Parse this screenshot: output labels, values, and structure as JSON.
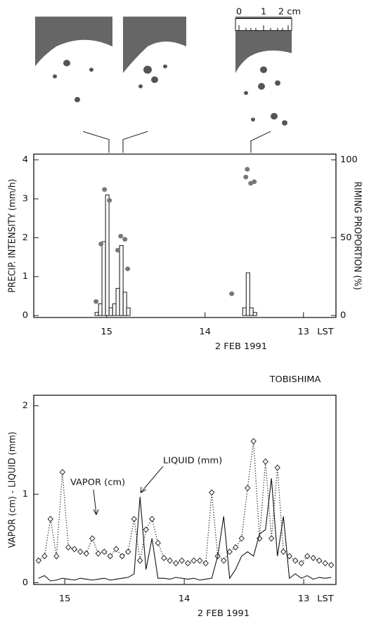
{
  "photo_scale": {
    "labels": [
      "0",
      "1",
      "2 cm"
    ]
  },
  "chart_data": [
    {
      "type": "bar",
      "y_label": "PRECIP. INTENSITY (mm/h)",
      "y2_label": "RIMING PROPORTION (%)",
      "x_unit": "LST",
      "x_label": "2 FEB 1991",
      "xlim": [
        15.74,
        12.67
      ],
      "xticks": [
        15,
        14,
        13
      ],
      "ylim": [
        -0.05,
        4.15
      ],
      "yticks": [
        0,
        1,
        2,
        3,
        4
      ],
      "y2lim": [
        -1.25,
        103.75
      ],
      "y2ticks": [
        0,
        50,
        100
      ],
      "color": "#ffffff",
      "x": [
        15.1,
        15.064,
        15.029,
        14.993,
        14.957,
        14.921,
        14.886,
        14.85,
        14.814,
        14.779,
        13.6,
        13.564,
        13.529,
        13.493
      ],
      "values": [
        0.08,
        0.3,
        1.9,
        3.1,
        0.2,
        0.3,
        0.7,
        1.8,
        0.6,
        0.2,
        0.2,
        1.1,
        0.2,
        0.08
      ],
      "overlay": {
        "type": "scatter",
        "axis": "y2",
        "color": "#777777",
        "x": [
          15.107,
          15.057,
          15.021,
          14.971,
          14.886,
          14.857,
          14.814,
          14.786,
          13.729,
          13.586,
          13.571,
          13.536,
          13.5
        ],
        "values": [
          9,
          46,
          81,
          74,
          42,
          51,
          49,
          30,
          14,
          89,
          94,
          85,
          86
        ]
      }
    },
    {
      "type": "line",
      "y_label": "VAPOR (cm) - LIQUID (mm)",
      "x_unit": "LST",
      "x_label": "2 FEB 1991",
      "annotations": [
        "TOBISHIMA",
        "LIQUID (mm)",
        "VAPOR (cm)"
      ],
      "xlim": [
        15.26,
        12.73
      ],
      "xticks": [
        15,
        14,
        13
      ],
      "ylim": [
        -0.02,
        2.12
      ],
      "yticks": [
        0,
        1,
        2
      ],
      "x": [
        15.22,
        15.17,
        15.12,
        15.07,
        15.02,
        14.97,
        14.92,
        14.87,
        14.82,
        14.77,
        14.72,
        14.67,
        14.62,
        14.57,
        14.52,
        14.47,
        14.42,
        14.37,
        14.32,
        14.27,
        14.22,
        14.17,
        14.12,
        14.07,
        14.02,
        13.97,
        13.92,
        13.87,
        13.82,
        13.77,
        13.72,
        13.67,
        13.62,
        13.57,
        13.52,
        13.47,
        13.42,
        13.37,
        13.32,
        13.27,
        13.22,
        13.17,
        13.12,
        13.07,
        13.02,
        12.97,
        12.92,
        12.87,
        12.82,
        12.77
      ],
      "series": [
        {
          "color": "#222222",
          "style": "dotted",
          "marker": "diamond",
          "values": [
            0.25,
            0.3,
            0.72,
            0.3,
            1.25,
            0.4,
            0.38,
            0.35,
            0.33,
            0.5,
            0.33,
            0.35,
            0.3,
            0.38,
            0.3,
            0.35,
            0.72,
            0.25,
            0.6,
            0.72,
            0.45,
            0.28,
            0.25,
            0.22,
            0.25,
            0.22,
            0.25,
            0.25,
            0.22,
            1.02,
            0.3,
            0.25,
            0.35,
            0.4,
            0.5,
            1.07,
            1.6,
            0.5,
            1.37,
            0.5,
            1.3,
            0.35,
            0.3,
            0.25,
            0.22,
            0.3,
            0.28,
            0.25,
            0.22,
            0.2
          ]
        },
        {
          "color": "#111111",
          "style": "solid",
          "values": [
            0.05,
            0.08,
            0.02,
            0.03,
            0.05,
            0.04,
            0.03,
            0.05,
            0.04,
            0.03,
            0.04,
            0.05,
            0.03,
            0.04,
            0.05,
            0.06,
            0.1,
            0.97,
            0.15,
            0.5,
            0.05,
            0.05,
            0.04,
            0.06,
            0.05,
            0.04,
            0.05,
            0.03,
            0.04,
            0.05,
            0.3,
            0.75,
            0.05,
            0.15,
            0.3,
            0.35,
            0.3,
            0.55,
            0.6,
            1.18,
            0.3,
            0.75,
            0.05,
            0.1,
            0.05,
            0.08,
            0.04,
            0.06,
            0.05,
            0.06
          ]
        }
      ]
    }
  ]
}
